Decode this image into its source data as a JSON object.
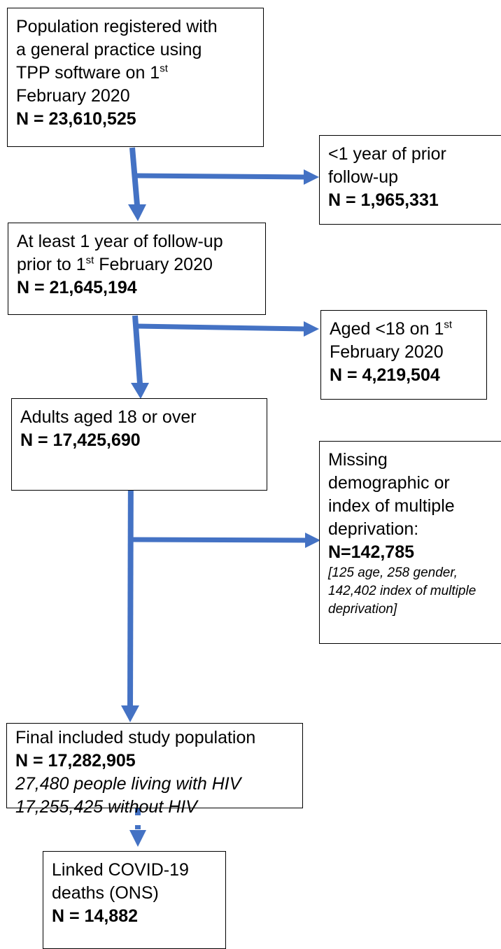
{
  "flowchart": {
    "box1": {
      "l1": "Population registered with",
      "l2": "a general practice using",
      "l3_pre": "TPP software on 1",
      "l3_sup": "st",
      "l4": "February 2020",
      "n": "N = 23,610,525"
    },
    "excl1": {
      "l1": "<1 year of prior",
      "l2": "follow-up",
      "n": "N = 1,965,331"
    },
    "box2": {
      "l1": "At least 1 year of follow-up",
      "l2_pre": "prior to 1",
      "l2_sup": "st",
      "l2_post": " February 2020",
      "n": "N = 21,645,194"
    },
    "excl2": {
      "l1_pre": "Aged <18 on 1",
      "l1_sup": "st",
      "l2": "February 2020",
      "n": "N = 4,219,504"
    },
    "box3": {
      "l1": "Adults aged 18 or over",
      "n": "N = 17,425,690"
    },
    "excl3": {
      "l1": "Missing",
      "l2": "demographic or",
      "l3": "index of multiple",
      "l4": "deprivation:",
      "n": "N=142,785",
      "d1": "[125 age, 258 gender,",
      "d2": "142,402 index of multiple",
      "d3": "deprivation]"
    },
    "box4": {
      "l1": "Final included study population",
      "n": "N = 17,282,905",
      "i1": "27,480 people living with HIV",
      "i2": "17,255,425 without HIV"
    },
    "box5": {
      "l1": "Linked COVID-19",
      "l2": "deaths (ONS)",
      "n": "N = 14,882"
    },
    "arrow_color": "#4472C4"
  }
}
